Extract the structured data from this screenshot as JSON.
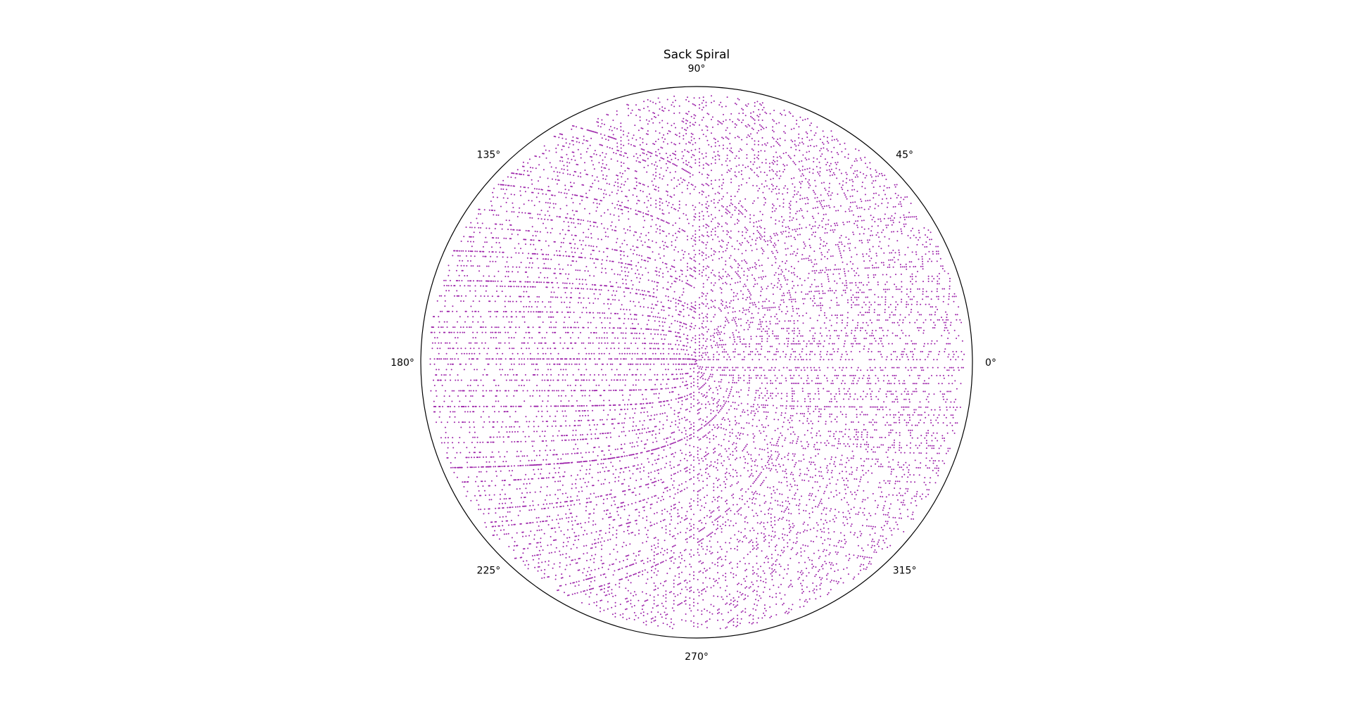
{
  "chart_data": {
    "type": "scatter",
    "coordinate_system": "polar",
    "title": "Sack Spiral",
    "description_of_data": "Prime numbers n plotted at angle 2*pi*sqrt(n) and radius sqrt(n)",
    "series": [
      {
        "point_color": "#9b1fa8",
        "rule": "primes n, theta = 2*pi*sqrt(n), r = sqrt(n)",
        "n_max": 100000
      }
    ],
    "theta_tick_labels": [
      "0°",
      "45°",
      "90°",
      "135°",
      "180°",
      "225°",
      "270°",
      "315°"
    ],
    "theta_tick_values": [
      0,
      45,
      90,
      135,
      180,
      225,
      270,
      315
    ],
    "radial_tick_labels_shown": false,
    "grid": false,
    "legend": "none"
  }
}
